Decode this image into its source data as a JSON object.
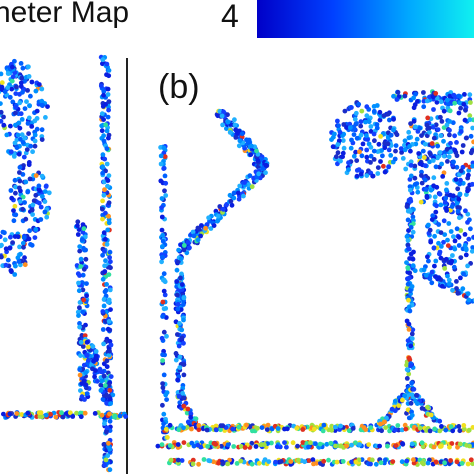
{
  "header": {
    "title": "neter Map",
    "colorbar_label": "4"
  },
  "panels": [
    {
      "label": "(b)"
    }
  ]
}
